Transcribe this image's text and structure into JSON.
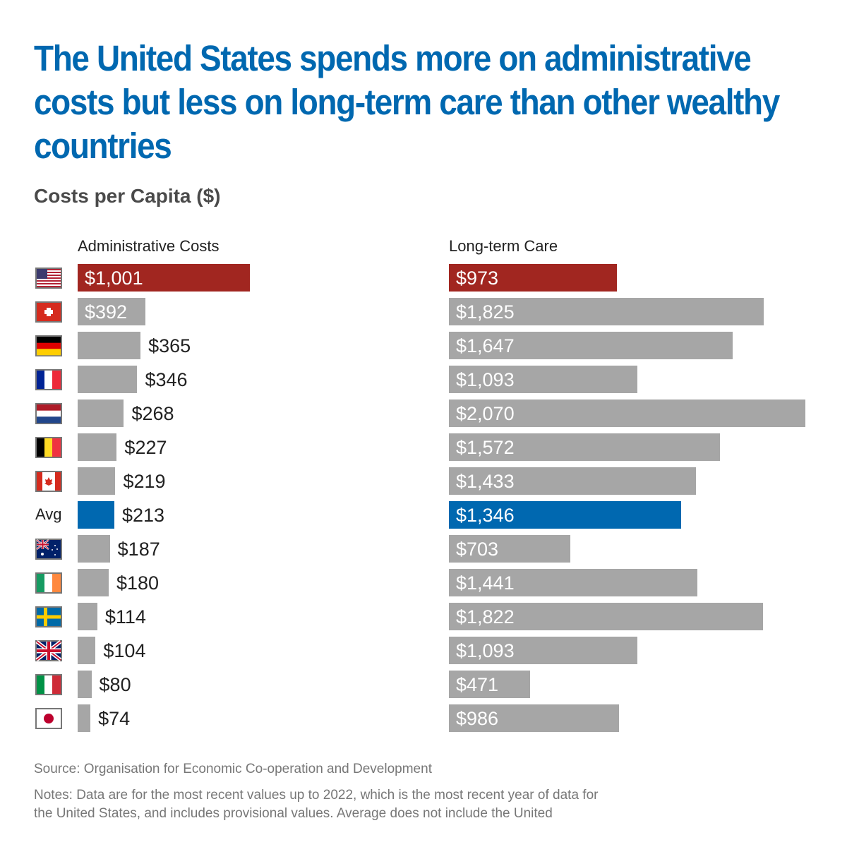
{
  "title": "The United States spends more on administrative costs but less on long-term care than other wealthy countries",
  "subtitle": "Costs per Capita ($)",
  "source": "Source: Organisation for Economic Co-operation and Development",
  "notes": "Notes: Data are for the most recent values up to 2022, which is the most recent year of data for the United States, and includes provisional values. Average does not include the United",
  "colors": {
    "us": "#a12620",
    "avg": "#0068b0",
    "other": "#a6a6a6",
    "title": "#0068b0"
  },
  "chart_data": {
    "type": "bar",
    "orientation": "horizontal",
    "title": "Costs per Capita ($)",
    "categories": [
      "United States",
      "Switzerland",
      "Germany",
      "France",
      "Netherlands",
      "Belgium",
      "Canada",
      "Avg",
      "Australia",
      "Ireland",
      "Sweden",
      "United Kingdom",
      "Italy",
      "Japan"
    ],
    "row_labels": [
      "",
      "",
      "",
      "",
      "",
      "",
      "",
      "Avg",
      "",
      "",
      "",
      "",
      "",
      ""
    ],
    "series": [
      {
        "name": "Administrative Costs",
        "values": [
          1001,
          392,
          365,
          346,
          268,
          227,
          219,
          213,
          187,
          180,
          114,
          104,
          80,
          74
        ],
        "labels": [
          "$1,001",
          "$392",
          "$365",
          "$346",
          "$268",
          "$227",
          "$219",
          "$213",
          "$187",
          "$180",
          "$114",
          "$104",
          "$80",
          "$74"
        ]
      },
      {
        "name": "Long-term Care",
        "values": [
          973,
          1825,
          1647,
          1093,
          2070,
          1572,
          1433,
          1346,
          703,
          1441,
          1822,
          1093,
          471,
          986
        ],
        "labels": [
          "$973",
          "$1,825",
          "$1,647",
          "$1,093",
          "$2,070",
          "$1,572",
          "$1,433",
          "$1,346",
          "$703",
          "$1,441",
          "$1,822",
          "$1,093",
          "$471",
          "$986"
        ]
      }
    ],
    "xlim": [
      0,
      2070
    ]
  }
}
